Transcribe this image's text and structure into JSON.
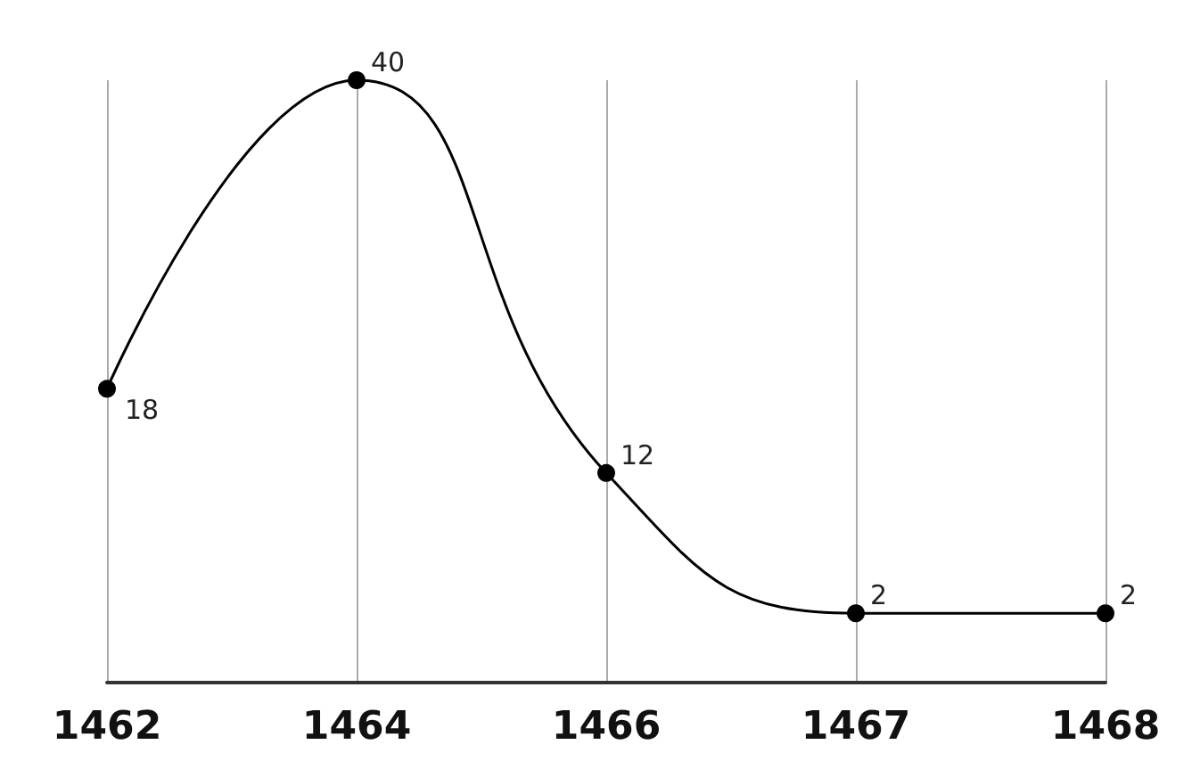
{
  "chart_data": {
    "type": "line",
    "categories": [
      "1462",
      "1464",
      "1466",
      "1467",
      "1468"
    ],
    "values": [
      18,
      40,
      12,
      2,
      2
    ],
    "color": "#000000",
    "data_labels": true,
    "grid": "x",
    "marker": "circle"
  }
}
